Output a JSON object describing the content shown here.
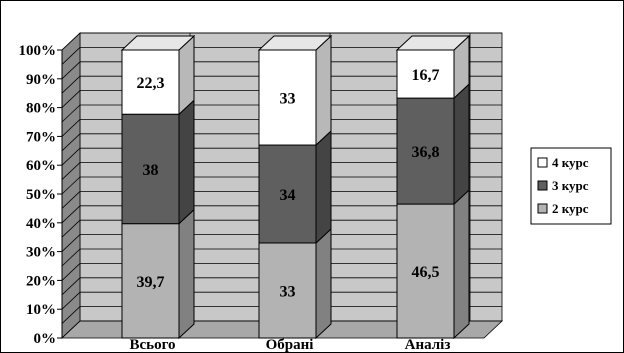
{
  "chart_data": {
    "type": "bar",
    "stacked": true,
    "percent_stacked": true,
    "three_d": true,
    "categories": [
      "Всього",
      "Обрані",
      "Аналіз"
    ],
    "series": [
      {
        "name": "2 курс",
        "values": [
          39.7,
          33,
          46.5
        ],
        "labels": [
          "39,7",
          "33",
          "46,5"
        ],
        "color": "#b3b3b3"
      },
      {
        "name": "3 курс",
        "values": [
          38,
          34,
          36.8
        ],
        "labels": [
          "38",
          "34",
          "36,8"
        ],
        "color": "#5f5f5f"
      },
      {
        "name": "4 курс",
        "values": [
          22.3,
          33,
          16.7
        ],
        "labels": [
          "22,3",
          "33",
          "16,7"
        ],
        "color": "#ffffff"
      }
    ],
    "y_ticks": [
      "0%",
      "10%",
      "20%",
      "30%",
      "40%",
      "50%",
      "60%",
      "70%",
      "80%",
      "90%",
      "100%"
    ],
    "ylim": [
      0,
      100
    ],
    "grid": true,
    "legend_position": "right",
    "legend_order": [
      "4 курс",
      "3 курс",
      "2 курс"
    ],
    "wall_color": "#c8c8c8",
    "floor_color": "#a8a8a8"
  }
}
